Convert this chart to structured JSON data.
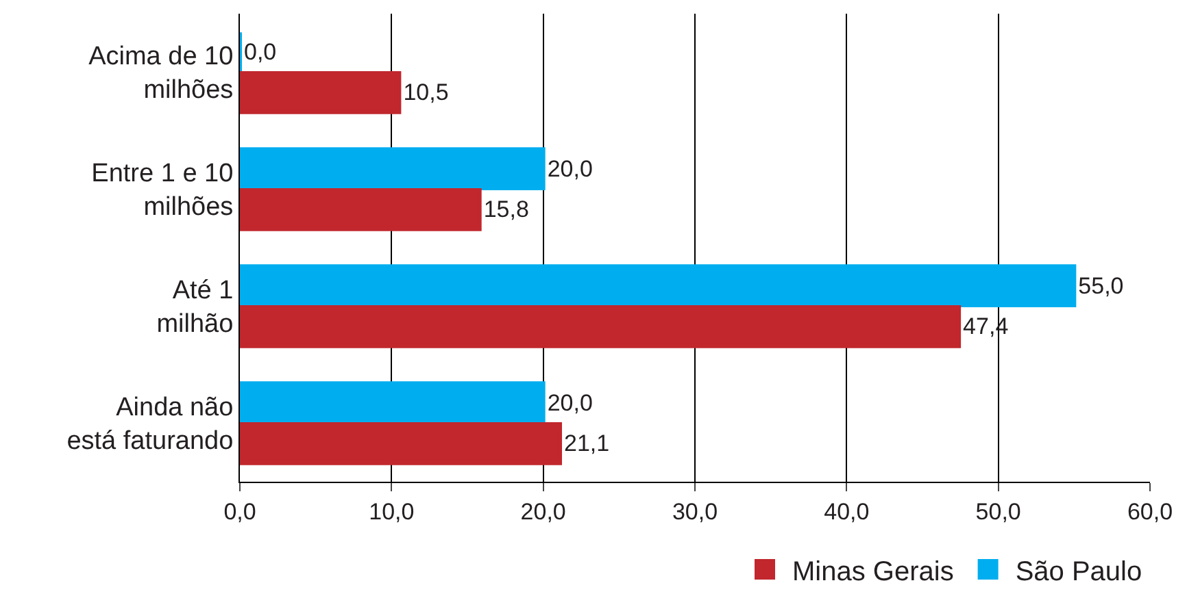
{
  "chart_data": {
    "type": "bar",
    "orientation": "horizontal",
    "categories": [
      "Acima de 10\nmilhões",
      "Entre 1 e 10\nmilhões",
      "Até 1\nmilhão",
      "Ainda não\nestá faturando"
    ],
    "series": [
      {
        "name": "Minas Gerais",
        "color": "#c1272d",
        "values": [
          10.5,
          15.8,
          47.4,
          21.1
        ],
        "value_labels": [
          "10,5",
          "15,8",
          "47,4",
          "21,1"
        ]
      },
      {
        "name": "São Paulo",
        "color": "#00aeef",
        "values": [
          0.0,
          20.0,
          55.0,
          20.0
        ],
        "value_labels": [
          "0,0",
          "20,0",
          "55,0",
          "20,0"
        ]
      }
    ],
    "xlim": [
      0,
      60
    ],
    "xticks": [
      {
        "value": 0,
        "label": "0,0"
      },
      {
        "value": 10,
        "label": "10,0"
      },
      {
        "value": 20,
        "label": "20,0"
      },
      {
        "value": 30,
        "label": "30,0"
      },
      {
        "value": 40,
        "label": "40,0"
      },
      {
        "value": 50,
        "label": "50,0"
      },
      {
        "value": 60,
        "label": "60,0"
      }
    ],
    "grid": "x",
    "legend": "bottom right"
  }
}
